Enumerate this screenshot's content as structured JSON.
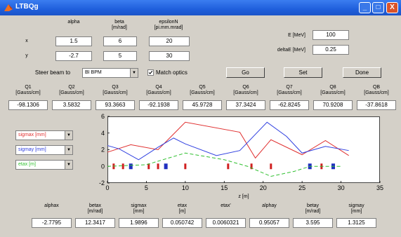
{
  "window": {
    "title": "LTBQg",
    "min_glyph": "_",
    "max_glyph": "□",
    "close_glyph": "X"
  },
  "beam": {
    "col_headers": [
      {
        "name": "alpha",
        "unit": ""
      },
      {
        "name": "beta",
        "unit": "[m/rad]"
      },
      {
        "name": "epsilonN",
        "unit": "[pi.mm.mrad]"
      }
    ],
    "rows": [
      {
        "label": "x",
        "values": [
          "1.5",
          "6",
          "20"
        ]
      },
      {
        "label": "y",
        "values": [
          "-2.7",
          "5",
          "30"
        ]
      }
    ]
  },
  "energy": {
    "e_label": "E [MeV]",
    "e_value": "100",
    "de_label": "deltaE [MeV]",
    "de_value": "0.25"
  },
  "controls": {
    "steer_label": "Steer beam to",
    "steer_value": "BI BPM",
    "match_label": "Match optics",
    "match_checked": true,
    "go": "Go",
    "set": "Set",
    "done": "Done"
  },
  "quads": [
    {
      "name": "Q1",
      "unit": "[Gauss/cm]",
      "value": "-98.1306"
    },
    {
      "name": "Q2",
      "unit": "[Gauss/cm]",
      "value": "3.5832"
    },
    {
      "name": "Q3",
      "unit": "[Gauss/cm]",
      "value": "93.3663"
    },
    {
      "name": "Q4",
      "unit": "[Gauss/cm]",
      "value": "-92.1938"
    },
    {
      "name": "Q5",
      "unit": "[Gauss/cm]",
      "value": "45.9728"
    },
    {
      "name": "Q6",
      "unit": "[Gauss/cm]",
      "value": "37.3424"
    },
    {
      "name": "Q7",
      "unit": "[Gauss/cm]",
      "value": "-62.8245"
    },
    {
      "name": "Q8",
      "unit": "[Gauss/cm]",
      "value": "70.9208"
    },
    {
      "name": "QB",
      "unit": "[Gauss/cm]",
      "value": "-37.8618"
    }
  ],
  "legend_selects": [
    {
      "label": "sigmax [mm]",
      "color": "#e03030"
    },
    {
      "label": "sigmay [mm]",
      "color": "#3040e0"
    },
    {
      "label": "etax [m]",
      "color": "#30c030"
    }
  ],
  "chart_data": {
    "type": "line",
    "xlabel": "z [m]",
    "ylabel": "",
    "xlim": [
      0,
      35
    ],
    "ylim": [
      -2,
      6
    ],
    "xticks": [
      0,
      5,
      10,
      15,
      20,
      25,
      30,
      35
    ],
    "yticks": [
      -2,
      0,
      2,
      4,
      6
    ],
    "series": [
      {
        "name": "sigmax [mm]",
        "color": "#e03030",
        "style": "solid",
        "x": [
          0,
          3,
          6.5,
          10,
          17,
          19,
          21,
          25,
          28,
          31
        ],
        "y": [
          1.7,
          2.6,
          2.0,
          5.3,
          4.1,
          1.0,
          3.2,
          1.4,
          3.1,
          1.3
        ]
      },
      {
        "name": "sigmay [mm]",
        "color": "#3040e0",
        "style": "solid",
        "x": [
          0,
          1.5,
          4,
          6.5,
          8.5,
          10,
          14,
          17,
          20.5,
          23,
          25,
          28,
          31
        ],
        "y": [
          2.5,
          2.1,
          0.8,
          2.3,
          3.4,
          2.7,
          1.3,
          1.9,
          5.3,
          3.6,
          1.6,
          2.4,
          1.9
        ]
      },
      {
        "name": "etax [m]",
        "color": "#30c030",
        "style": "dashed",
        "x": [
          0,
          5,
          10,
          15,
          18,
          21,
          24,
          26,
          28,
          30
        ],
        "y": [
          0,
          0.2,
          1.6,
          0.8,
          0,
          -1.2,
          -0.6,
          0,
          0,
          0
        ]
      }
    ],
    "elements": [
      {
        "z": 0.8,
        "kind": "quad"
      },
      {
        "z": 2.0,
        "kind": "quad"
      },
      {
        "z": 3.0,
        "kind": "bend"
      },
      {
        "z": 5.3,
        "kind": "quad"
      },
      {
        "z": 6.5,
        "kind": "quad"
      },
      {
        "z": 7.5,
        "kind": "bend"
      },
      {
        "z": 10.0,
        "kind": "quad"
      },
      {
        "z": 15.5,
        "kind": "quad"
      },
      {
        "z": 18.5,
        "kind": "quad"
      },
      {
        "z": 21.0,
        "kind": "quad"
      },
      {
        "z": 26.0,
        "kind": "bend"
      },
      {
        "z": 27.5,
        "kind": "quad"
      },
      {
        "z": 29.0,
        "kind": "bend"
      }
    ]
  },
  "results": [
    {
      "name": "alphax",
      "unit": "",
      "value": "-2.7795"
    },
    {
      "name": "betax",
      "unit": "[m/rad]",
      "value": "12.3417"
    },
    {
      "name": "sigmax",
      "unit": "[mm]",
      "value": "1.9896"
    },
    {
      "name": "etax",
      "unit": "[m]",
      "value": "0.050742"
    },
    {
      "name": "etax'",
      "unit": "",
      "value": "0.0060321"
    },
    {
      "name": "alphay",
      "unit": "",
      "value": "0.95057"
    },
    {
      "name": "betay",
      "unit": "[m/rad]",
      "value": "3.595"
    },
    {
      "name": "sigmay",
      "unit": "[mm]",
      "value": "1.3125"
    }
  ]
}
